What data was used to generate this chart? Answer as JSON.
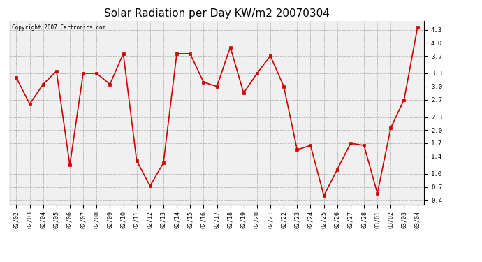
{
  "title": "Solar Radiation per Day KW/m2 20070304",
  "copyright_text": "Copyright 2007 Cartronics.com",
  "dates": [
    "02/02",
    "02/03",
    "02/04",
    "02/05",
    "02/06",
    "02/07",
    "02/08",
    "02/09",
    "02/10",
    "02/11",
    "02/12",
    "02/13",
    "02/14",
    "02/15",
    "02/16",
    "02/17",
    "02/18",
    "02/19",
    "02/20",
    "02/21",
    "02/22",
    "02/23",
    "02/24",
    "02/25",
    "02/26",
    "02/27",
    "02/28",
    "03/01",
    "03/02",
    "03/03",
    "03/04"
  ],
  "values": [
    3.2,
    2.6,
    3.05,
    3.35,
    1.2,
    3.3,
    3.3,
    3.05,
    3.75,
    1.3,
    0.72,
    1.25,
    3.75,
    3.75,
    3.1,
    3.0,
    3.9,
    2.85,
    3.3,
    3.7,
    3.0,
    1.55,
    1.65,
    0.5,
    1.1,
    1.7,
    1.65,
    0.55,
    2.05,
    2.7,
    4.35
  ],
  "line_color": "#cc0000",
  "marker_size": 3,
  "line_width": 1.2,
  "bg_color": "#ffffff",
  "plot_bg_color": "#f0f0f0",
  "grid_color": "#999999",
  "title_fontsize": 11,
  "ylim": [
    0.3,
    4.5
  ],
  "yticks": [
    0.4,
    0.7,
    1.0,
    1.4,
    1.7,
    2.0,
    2.3,
    2.7,
    3.0,
    3.3,
    3.7,
    4.0,
    4.3
  ],
  "copyright_fontsize": 5.5,
  "tick_fontsize": 6,
  "ytick_fontsize": 6.5
}
